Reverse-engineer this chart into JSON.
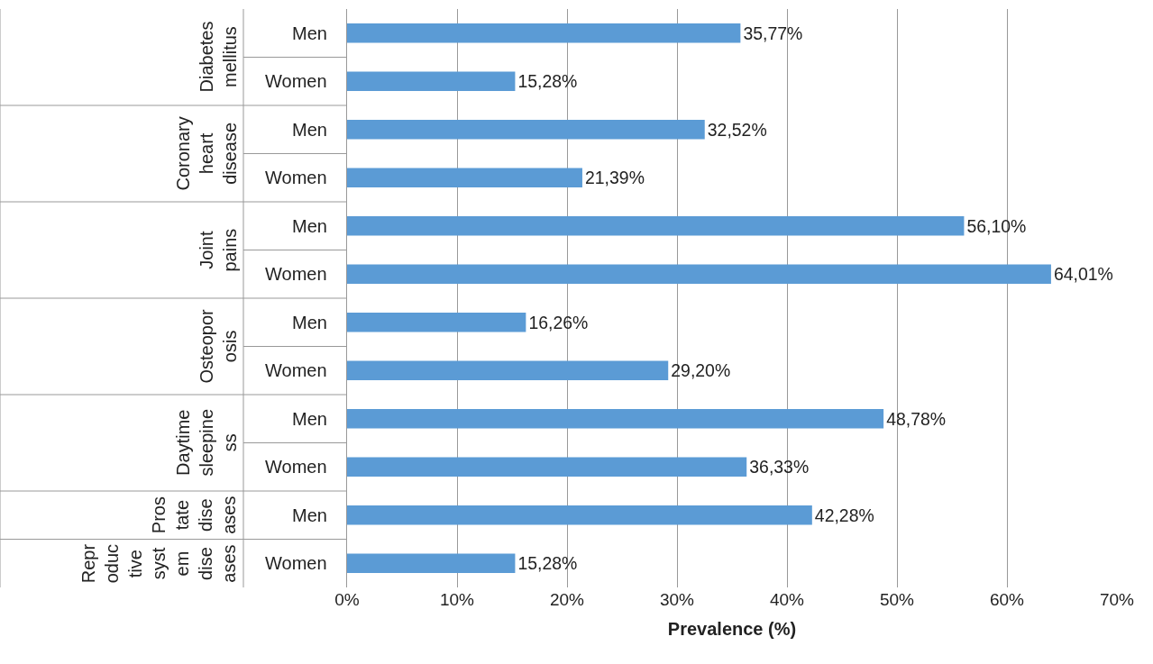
{
  "chart_data": {
    "type": "bar",
    "orientation": "horizontal",
    "xlabel": "Prevalence (%)",
    "categories": [
      "Men",
      "Women",
      "Men",
      "Women",
      "Men",
      "Women",
      "Men",
      "Women",
      "Men",
      "Women",
      "Men",
      "Women"
    ],
    "values": [
      35.77,
      15.28,
      32.52,
      21.39,
      56.1,
      64.01,
      16.26,
      29.2,
      48.78,
      36.33,
      42.28,
      15.28
    ],
    "value_labels": [
      "35,77%",
      "15,28%",
      "32,52%",
      "21,39%",
      "56,10%",
      "64,01%",
      "16,26%",
      "29,20%",
      "48,78%",
      "36,33%",
      "42,28%",
      "15,28%"
    ],
    "color": "#5b9bd5",
    "annotations": [
      "Diabetes mellitus",
      "Coronary heart disease",
      "Joint pains",
      "Osteoporosis",
      "Daytime sleepiness",
      "Prostate diseases",
      "Reproductive system diseases"
    ],
    "xlim": [
      0,
      70
    ],
    "xticks": [
      {
        "value": 0,
        "label": "0%"
      },
      {
        "value": 10,
        "label": "10%"
      },
      {
        "value": 20,
        "label": "20%"
      },
      {
        "value": 30,
        "label": "30%"
      },
      {
        "value": 40,
        "label": "40%"
      },
      {
        "value": 50,
        "label": "50%"
      },
      {
        "value": 60,
        "label": "60%"
      },
      {
        "value": 70,
        "label": "70%"
      }
    ],
    "grid": "x",
    "legend": false
  }
}
